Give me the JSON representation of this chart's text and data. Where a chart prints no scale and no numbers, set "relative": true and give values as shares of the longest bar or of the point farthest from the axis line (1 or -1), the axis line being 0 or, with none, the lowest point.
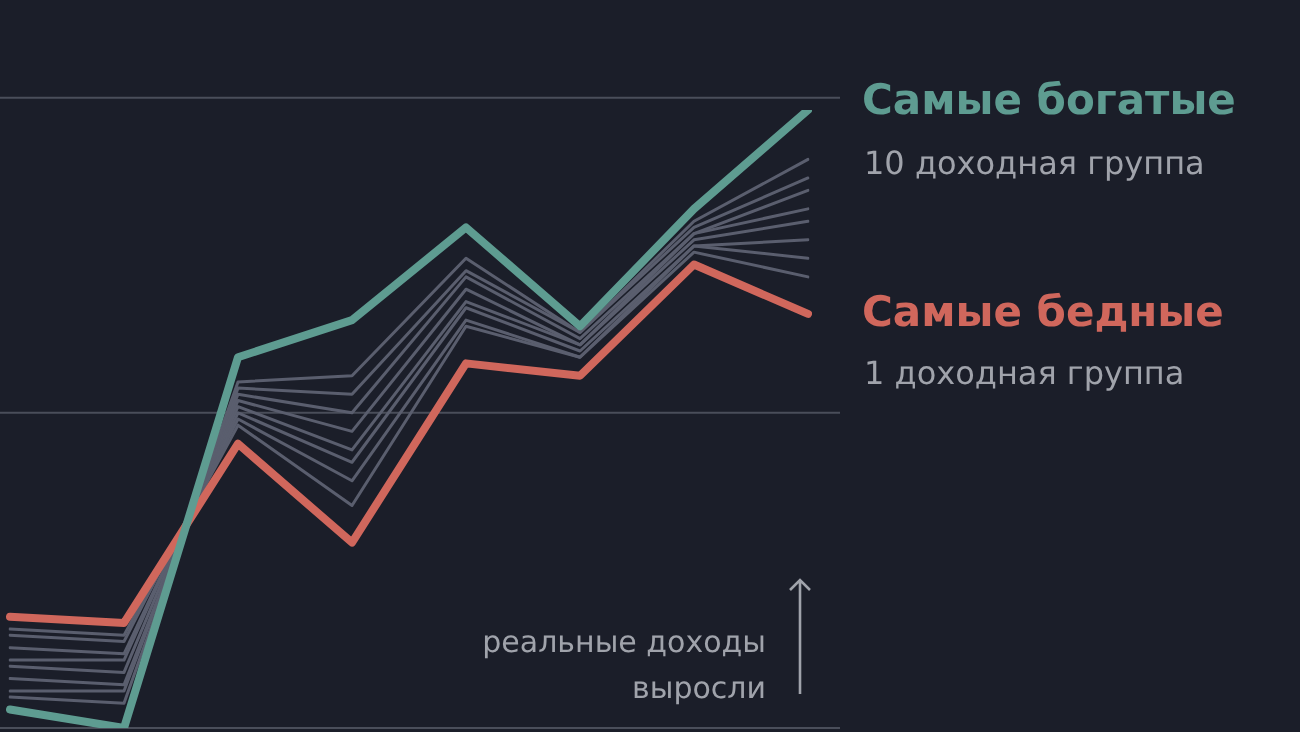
{
  "chart_data": {
    "type": "line",
    "relative": true,
    "categories": [
      null,
      null,
      null,
      null,
      null,
      null,
      null,
      null
    ],
    "series": [
      {
        "name": "Самые богатые",
        "color": "#5e9c91",
        "values": [
          0.03,
          0,
          0.6,
          0.66,
          0.81,
          0.65,
          0.84,
          1
        ]
      },
      {
        "color": "#5a5e6e",
        "values": [
          0.05,
          0.04,
          0.56,
          0.57,
          0.76,
          0.64,
          0.82,
          0.92
        ]
      },
      {
        "color": "#5a5e6e",
        "values": [
          0.06,
          0.06,
          0.55,
          0.54,
          0.74,
          0.64,
          0.81,
          0.89
        ]
      },
      {
        "color": "#5a5e6e",
        "values": [
          0.08,
          0.07,
          0.54,
          0.51,
          0.73,
          0.63,
          0.8,
          0.87
        ]
      },
      {
        "color": "#5a5e6e",
        "values": [
          0.1,
          0.09,
          0.53,
          0.48,
          0.71,
          0.62,
          0.8,
          0.84
        ]
      },
      {
        "color": "#5a5e6e",
        "values": [
          0.11,
          0.11,
          0.52,
          0.45,
          0.69,
          0.62,
          0.79,
          0.82
        ]
      },
      {
        "color": "#5a5e6e",
        "values": [
          0.13,
          0.12,
          0.51,
          0.43,
          0.68,
          0.61,
          0.78,
          0.79
        ]
      },
      {
        "color": "#5a5e6e",
        "values": [
          0.15,
          0.14,
          0.5,
          0.4,
          0.66,
          0.6,
          0.78,
          0.76
        ]
      },
      {
        "color": "#5a5e6e",
        "values": [
          0.16,
          0.15,
          0.49,
          0.36,
          0.65,
          0.6,
          0.77,
          0.73
        ]
      },
      {
        "name": "Самые бедные",
        "color": "#d0675c",
        "values": [
          0.18,
          0.17,
          0.46,
          0.3,
          0.59,
          0.57,
          0.75,
          0.67
        ]
      }
    ],
    "ref_lines": [
      {
        "axis": "y",
        "value": 0,
        "color": "#4a4e5a"
      },
      {
        "axis": "y",
        "value": 0.51,
        "color": "#4a4e5a"
      },
      {
        "axis": "y",
        "value": 1.02,
        "color": "#4a4e5a"
      }
    ],
    "annotations": [
      "10 доходная группа",
      "1 доходная группа",
      "реальные доходы выросли"
    ],
    "legend": false,
    "marker": "none",
    "line_style": "solid"
  }
}
